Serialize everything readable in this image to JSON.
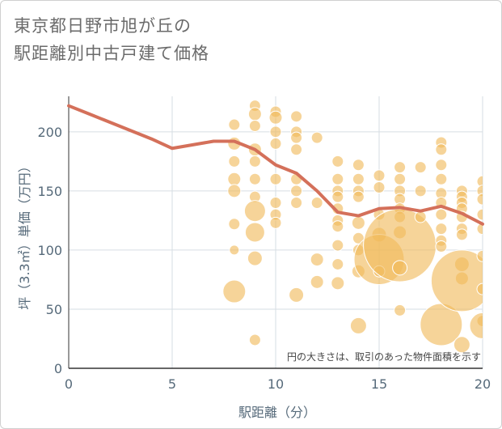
{
  "title": {
    "line1": "東京都日野市旭が丘の",
    "line2": "駅距離別中古戸建て価格"
  },
  "chart_data": {
    "type": "scatter",
    "title": "東京都日野市旭が丘の駅距離別中古戸建て価格",
    "xlabel": "駅距離（分）",
    "ylabel": "坪（3.3㎡）単価（万円）",
    "xlim": [
      0,
      20
    ],
    "ylim": [
      0,
      230
    ],
    "xticks": [
      0,
      5,
      10,
      15,
      20
    ],
    "yticks": [
      0,
      50,
      100,
      150,
      200
    ],
    "grid": true,
    "annotation": "円の大きさは、取引のあった物件面積を示す",
    "colors": {
      "bubble": "#f0b95a",
      "line": "#d4705a",
      "grid": "#d6dde3",
      "text": "#566a7a"
    },
    "line": {
      "x": [
        0,
        1,
        2,
        3,
        4,
        5,
        6,
        7,
        8,
        9,
        10,
        11,
        12,
        13,
        14,
        15,
        16,
        17,
        18,
        19,
        20
      ],
      "y": [
        222,
        215,
        208,
        201,
        194,
        186,
        189,
        192,
        192,
        185,
        172,
        165,
        150,
        132,
        129,
        135,
        136,
        133,
        137,
        131,
        122
      ]
    },
    "bubbles": [
      {
        "x": 8,
        "y": 206,
        "r": 7
      },
      {
        "x": 8,
        "y": 190,
        "r": 8
      },
      {
        "x": 8,
        "y": 175,
        "r": 7
      },
      {
        "x": 8,
        "y": 160,
        "r": 8
      },
      {
        "x": 8,
        "y": 150,
        "r": 8
      },
      {
        "x": 8,
        "y": 122,
        "r": 7
      },
      {
        "x": 8,
        "y": 100,
        "r": 6
      },
      {
        "x": 8,
        "y": 65,
        "r": 14
      },
      {
        "x": 9,
        "y": 222,
        "r": 7
      },
      {
        "x": 9,
        "y": 215,
        "r": 8
      },
      {
        "x": 9,
        "y": 205,
        "r": 7
      },
      {
        "x": 9,
        "y": 185,
        "r": 8
      },
      {
        "x": 9,
        "y": 175,
        "r": 7
      },
      {
        "x": 9,
        "y": 160,
        "r": 7
      },
      {
        "x": 9,
        "y": 145,
        "r": 7
      },
      {
        "x": 9,
        "y": 133,
        "r": 13
      },
      {
        "x": 9,
        "y": 115,
        "r": 12
      },
      {
        "x": 9,
        "y": 93,
        "r": 9
      },
      {
        "x": 9,
        "y": 24,
        "r": 7
      },
      {
        "x": 10,
        "y": 217,
        "r": 7
      },
      {
        "x": 10,
        "y": 212,
        "r": 8
      },
      {
        "x": 10,
        "y": 200,
        "r": 7
      },
      {
        "x": 10,
        "y": 190,
        "r": 7
      },
      {
        "x": 10,
        "y": 160,
        "r": 7
      },
      {
        "x": 10,
        "y": 140,
        "r": 7
      },
      {
        "x": 10,
        "y": 130,
        "r": 7
      },
      {
        "x": 10,
        "y": 123,
        "r": 7
      },
      {
        "x": 11,
        "y": 213,
        "r": 7
      },
      {
        "x": 11,
        "y": 200,
        "r": 7
      },
      {
        "x": 11,
        "y": 195,
        "r": 7
      },
      {
        "x": 11,
        "y": 185,
        "r": 7
      },
      {
        "x": 11,
        "y": 160,
        "r": 7
      },
      {
        "x": 11,
        "y": 150,
        "r": 7
      },
      {
        "x": 11,
        "y": 140,
        "r": 7
      },
      {
        "x": 11,
        "y": 62,
        "r": 9
      },
      {
        "x": 12,
        "y": 195,
        "r": 7
      },
      {
        "x": 12,
        "y": 140,
        "r": 7
      },
      {
        "x": 12,
        "y": 92,
        "r": 8
      },
      {
        "x": 12,
        "y": 73,
        "r": 8
      },
      {
        "x": 13,
        "y": 175,
        "r": 7
      },
      {
        "x": 13,
        "y": 160,
        "r": 7
      },
      {
        "x": 13,
        "y": 150,
        "r": 7
      },
      {
        "x": 13,
        "y": 145,
        "r": 7
      },
      {
        "x": 13,
        "y": 135,
        "r": 7
      },
      {
        "x": 13,
        "y": 125,
        "r": 7
      },
      {
        "x": 13,
        "y": 120,
        "r": 7
      },
      {
        "x": 13,
        "y": 104,
        "r": 7
      },
      {
        "x": 13,
        "y": 88,
        "r": 7
      },
      {
        "x": 13,
        "y": 72,
        "r": 8
      },
      {
        "x": 14,
        "y": 172,
        "r": 7
      },
      {
        "x": 14,
        "y": 160,
        "r": 7
      },
      {
        "x": 14,
        "y": 150,
        "r": 7
      },
      {
        "x": 14,
        "y": 145,
        "r": 7
      },
      {
        "x": 14,
        "y": 123,
        "r": 8
      },
      {
        "x": 14,
        "y": 110,
        "r": 7
      },
      {
        "x": 14,
        "y": 100,
        "r": 7
      },
      {
        "x": 14,
        "y": 82,
        "r": 8
      },
      {
        "x": 14,
        "y": 36,
        "r": 10
      },
      {
        "x": 15,
        "y": 163,
        "r": 7
      },
      {
        "x": 15,
        "y": 153,
        "r": 7
      },
      {
        "x": 15,
        "y": 130,
        "r": 7
      },
      {
        "x": 15,
        "y": 113,
        "r": 9
      },
      {
        "x": 15,
        "y": 92,
        "r": 31
      },
      {
        "x": 15,
        "y": 82,
        "r": 7
      },
      {
        "x": 16,
        "y": 170,
        "r": 7
      },
      {
        "x": 16,
        "y": 160,
        "r": 7
      },
      {
        "x": 16,
        "y": 150,
        "r": 7
      },
      {
        "x": 16,
        "y": 143,
        "r": 7
      },
      {
        "x": 16,
        "y": 135,
        "r": 7
      },
      {
        "x": 16,
        "y": 128,
        "r": 7
      },
      {
        "x": 16,
        "y": 115,
        "r": 8
      },
      {
        "x": 16,
        "y": 104,
        "r": 45
      },
      {
        "x": 16,
        "y": 85,
        "r": 9
      },
      {
        "x": 16,
        "y": 49,
        "r": 7
      },
      {
        "x": 17,
        "y": 170,
        "r": 7
      },
      {
        "x": 17,
        "y": 150,
        "r": 7
      },
      {
        "x": 17,
        "y": 128,
        "r": 7
      },
      {
        "x": 18,
        "y": 191,
        "r": 7
      },
      {
        "x": 18,
        "y": 185,
        "r": 7
      },
      {
        "x": 18,
        "y": 172,
        "r": 7
      },
      {
        "x": 18,
        "y": 160,
        "r": 7
      },
      {
        "x": 18,
        "y": 148,
        "r": 7
      },
      {
        "x": 18,
        "y": 140,
        "r": 7
      },
      {
        "x": 18,
        "y": 130,
        "r": 7
      },
      {
        "x": 18,
        "y": 118,
        "r": 7
      },
      {
        "x": 18,
        "y": 108,
        "r": 7
      },
      {
        "x": 18,
        "y": 103,
        "r": 7
      },
      {
        "x": 18,
        "y": 37,
        "r": 26
      },
      {
        "x": 19,
        "y": 150,
        "r": 7
      },
      {
        "x": 19,
        "y": 145,
        "r": 7
      },
      {
        "x": 19,
        "y": 140,
        "r": 7
      },
      {
        "x": 19,
        "y": 135,
        "r": 7
      },
      {
        "x": 19,
        "y": 128,
        "r": 7
      },
      {
        "x": 19,
        "y": 118,
        "r": 7
      },
      {
        "x": 19,
        "y": 113,
        "r": 7
      },
      {
        "x": 19,
        "y": 88,
        "r": 9
      },
      {
        "x": 19,
        "y": 76,
        "r": 8
      },
      {
        "x": 19,
        "y": 74,
        "r": 38
      },
      {
        "x": 19,
        "y": 20,
        "r": 10
      },
      {
        "x": 20,
        "y": 158,
        "r": 7
      },
      {
        "x": 20,
        "y": 150,
        "r": 7
      },
      {
        "x": 20,
        "y": 143,
        "r": 7
      },
      {
        "x": 20,
        "y": 130,
        "r": 7
      },
      {
        "x": 20,
        "y": 118,
        "r": 7
      },
      {
        "x": 20,
        "y": 95,
        "r": 7
      },
      {
        "x": 20,
        "y": 67,
        "r": 7
      },
      {
        "x": 20,
        "y": 40,
        "r": 7
      },
      {
        "x": 20,
        "y": 36,
        "r": 16
      }
    ]
  }
}
